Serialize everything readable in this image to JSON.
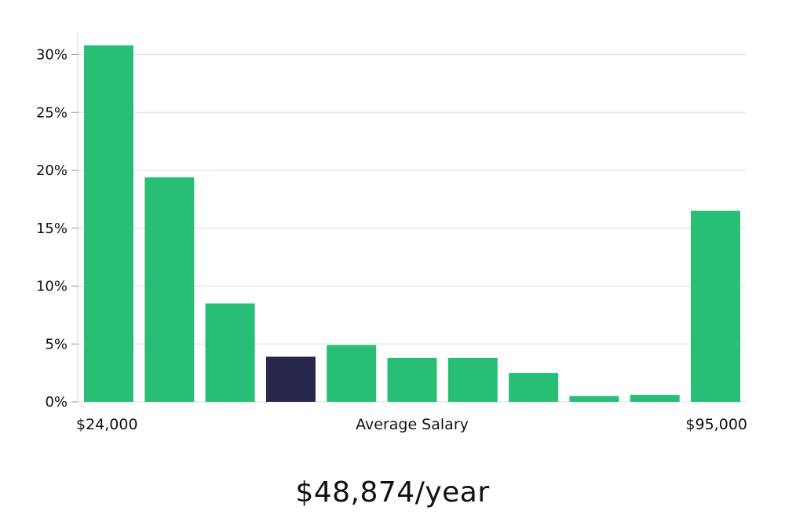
{
  "chart_data": {
    "type": "bar",
    "categories": [
      "1",
      "2",
      "3",
      "4",
      "5",
      "6",
      "7",
      "8",
      "9",
      "10",
      "11"
    ],
    "values": [
      30.8,
      19.4,
      8.5,
      3.9,
      4.9,
      3.8,
      3.8,
      2.5,
      0.5,
      0.6,
      16.5
    ],
    "highlight_index": 3,
    "ylim": [
      0,
      32
    ],
    "yticks": [
      0,
      5,
      10,
      15,
      20,
      25,
      30
    ],
    "ytick_labels": [
      "0%",
      "5%",
      "10%",
      "15%",
      "20%",
      "25%",
      "30%"
    ],
    "x_min_label": "$24,000",
    "xlabel": "Average Salary",
    "x_max_label": "$95,000",
    "grid": true,
    "bar_color": "#29be76",
    "highlight_color": "#2a284a",
    "grid_color": "#e3e3e3"
  },
  "summary": {
    "average_salary": "$48,874/year"
  }
}
